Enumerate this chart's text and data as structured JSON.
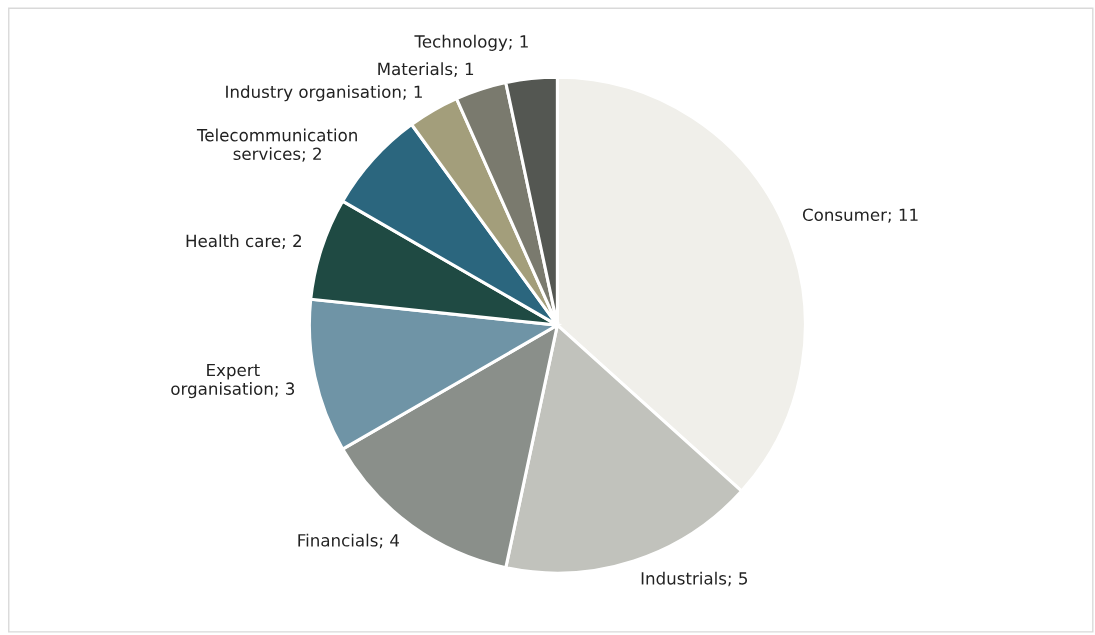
{
  "chart_data": {
    "type": "pie",
    "categories": [
      "Consumer; 11",
      "Industrials; 5",
      "Financials; 4",
      "Expert\norganisation; 3",
      "Health care; 2",
      "Telecommunication\nservices; 2",
      "Industry organisation; 1",
      "Materials; 1",
      "Technology; 1"
    ],
    "values": [
      11,
      5,
      4,
      3,
      2,
      2,
      1,
      1,
      1
    ],
    "colors": [
      "#f0efea",
      "#c1c2bc",
      "#8a8f8a",
      "#6f94a6",
      "#1f4a43",
      "#2b667e",
      "#a39e7b",
      "#7a7a6e",
      "#545752"
    ]
  }
}
